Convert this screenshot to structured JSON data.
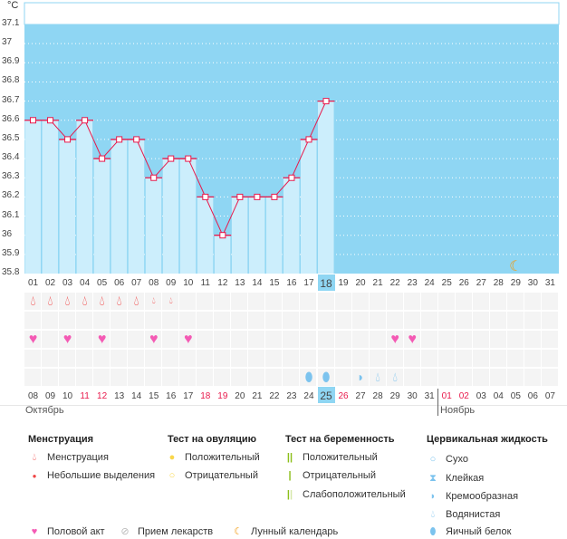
{
  "unit": "°C",
  "y_ticks": [
    "37.1",
    "37",
    "36.9",
    "36.8",
    "36.7",
    "36.6",
    "36.5",
    "36.4",
    "36.3",
    "36.2",
    "36.1",
    "36",
    "35.9",
    "35.8"
  ],
  "chart_data": {
    "type": "line",
    "ylim": [
      35.8,
      37.1
    ],
    "cycle_days": [
      "01",
      "02",
      "03",
      "04",
      "05",
      "06",
      "07",
      "08",
      "09",
      "10",
      "11",
      "12",
      "13",
      "14",
      "15",
      "16",
      "17",
      "18",
      "19",
      "20",
      "21",
      "22",
      "23",
      "24",
      "25",
      "26",
      "27",
      "28",
      "29",
      "30",
      "31"
    ],
    "temperatures": [
      36.6,
      36.6,
      36.5,
      36.6,
      36.4,
      36.5,
      36.5,
      36.3,
      36.4,
      36.4,
      36.2,
      36.0,
      36.2,
      36.2,
      36.2,
      36.3,
      36.5,
      36.7
    ],
    "current_cycle_day": "18"
  },
  "moon_day": 29,
  "menstruation": {
    "heavy_days": [
      1,
      2,
      3,
      4,
      5,
      6,
      7
    ],
    "light_days": [
      8,
      9
    ]
  },
  "intercourse_days": [
    1,
    3,
    5,
    8,
    10,
    22,
    23
  ],
  "cervical": [
    {
      "day": 17,
      "type": "egg-white"
    },
    {
      "day": 18,
      "type": "egg-white"
    },
    {
      "day": 20,
      "type": "creamy"
    },
    {
      "day": 21,
      "type": "watery"
    },
    {
      "day": 22,
      "type": "watery"
    }
  ],
  "calendar": {
    "dates": [
      "08",
      "09",
      "10",
      "11",
      "12",
      "13",
      "14",
      "15",
      "16",
      "17",
      "18",
      "19",
      "20",
      "21",
      "22",
      "23",
      "24",
      "25",
      "26",
      "27",
      "28",
      "29",
      "30",
      "31",
      "01",
      "02",
      "03",
      "04",
      "05",
      "06",
      "07"
    ],
    "weekend_indexes": [
      3,
      4,
      10,
      11,
      18,
      24,
      25
    ],
    "today_index": 17,
    "month1": "Октябрь",
    "month2": "Ноябрь"
  },
  "legend": {
    "menstruation": {
      "title": "Менструация",
      "items": [
        "Менструация",
        "Небольшие выделения"
      ]
    },
    "ovulation": {
      "title": "Тест на овуляцию",
      "items": [
        "Положительный",
        "Отрицательный"
      ]
    },
    "pregnancy": {
      "title": "Тест на беременность",
      "items": [
        "Положительный",
        "Отрицательный",
        "Слабоположительный"
      ]
    },
    "cervical": {
      "title": "Цервикальная жидкость",
      "items": [
        "Сухо",
        "Клейкая",
        "Кремообразная",
        "Водянистая",
        "Яичный белок"
      ]
    },
    "other": [
      "Половой акт",
      "Прием лекарств",
      "Лунный календарь"
    ]
  },
  "colors": {
    "bg": "#8fd6f3",
    "bar": "#cceefc",
    "line": "#e8194b",
    "blood": "#f04545",
    "heart": "#f45ab4",
    "fluid": "#7cc3ee",
    "moon": "#f39c12"
  }
}
